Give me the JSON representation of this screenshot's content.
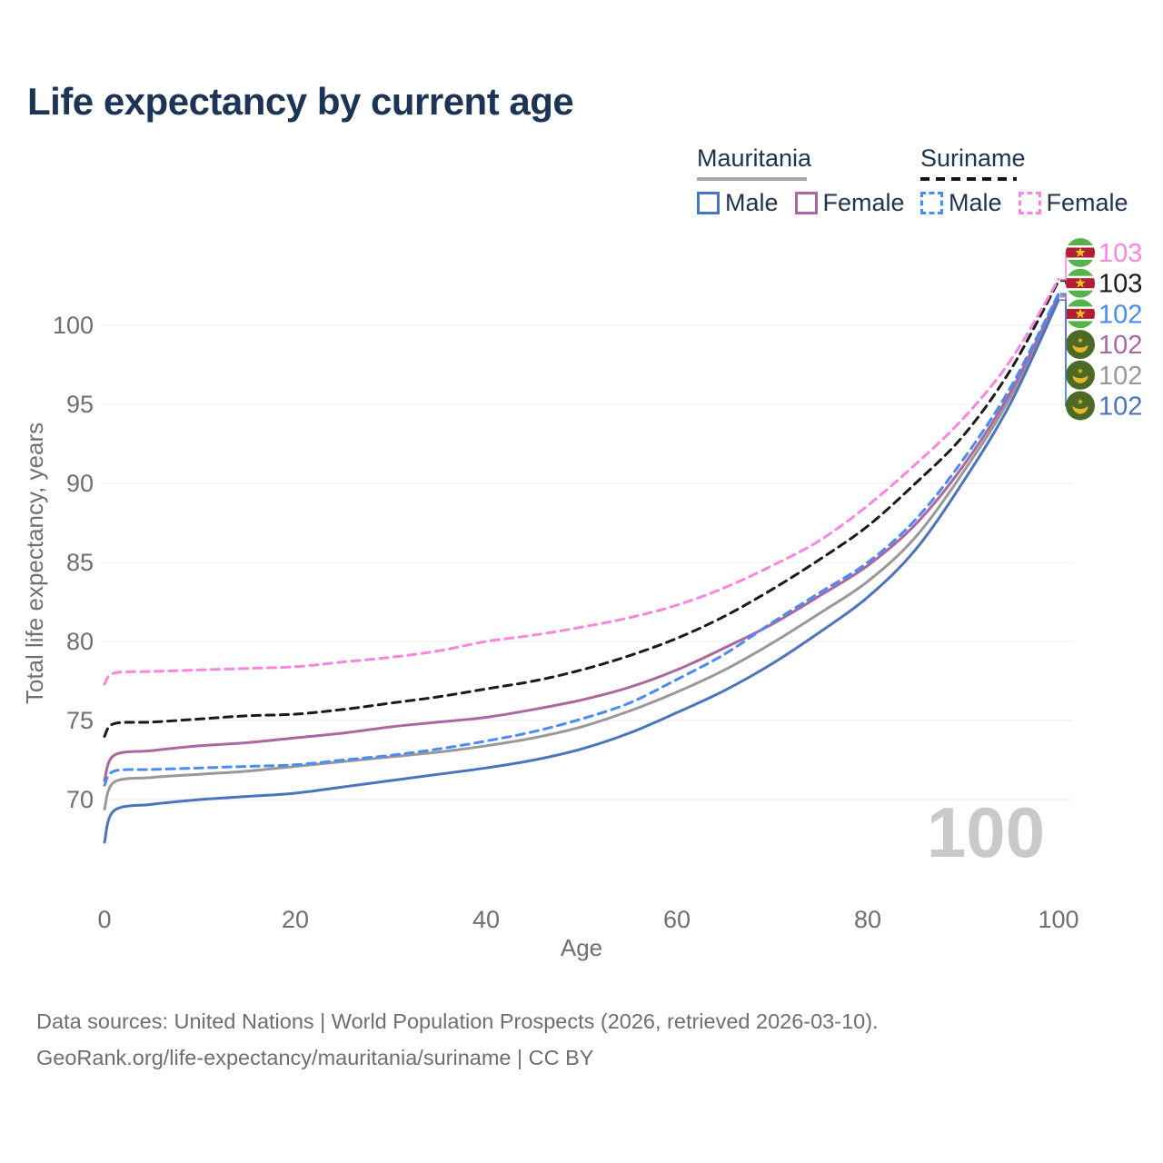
{
  "title": "Life expectancy by current age",
  "watermark": "100",
  "legend": {
    "mauritania": {
      "name": "Mauritania",
      "male": "Male",
      "female": "Female"
    },
    "suriname": {
      "name": "Suriname",
      "male": "Male",
      "female": "Female"
    }
  },
  "footer": {
    "line1": "Data sources: United Nations | World Population Prospects (2026, retrieved 2026-03-10).",
    "line2": "GeoRank.org/life-expectancy/mauritania/suriname | CC BY"
  },
  "chart_data": {
    "type": "line",
    "title": "Life expectancy by current age",
    "xlabel": "Age",
    "ylabel": "Total life expectancy, years",
    "x_ticks": [
      0,
      20,
      40,
      60,
      80,
      100
    ],
    "y_ticks": [
      70,
      75,
      80,
      85,
      90,
      95,
      100
    ],
    "xlim": [
      0,
      100
    ],
    "ylim": [
      66,
      104
    ],
    "grid": "horizontal",
    "legend_position": "top-right",
    "ages": [
      0,
      1,
      5,
      10,
      15,
      20,
      25,
      30,
      35,
      40,
      45,
      50,
      55,
      60,
      65,
      70,
      75,
      80,
      85,
      90,
      95,
      100
    ],
    "series": [
      {
        "id": "mauritania-male",
        "name": "Mauritania Male",
        "country": "Mauritania",
        "sex": "Male",
        "color": "#4a74bc",
        "line_style": "solid",
        "flag": "mauritania",
        "end_label": "102",
        "values": [
          67.3,
          69.3,
          69.7,
          70.0,
          70.2,
          70.4,
          70.8,
          71.2,
          71.6,
          72.0,
          72.5,
          73.2,
          74.2,
          75.5,
          76.9,
          78.6,
          80.6,
          82.8,
          85.8,
          90.1,
          95.1,
          101.6
        ]
      },
      {
        "id": "mauritania-female",
        "name": "Mauritania Female",
        "country": "Mauritania",
        "sex": "Female",
        "color": "#ab67a2",
        "line_style": "solid",
        "flag": "mauritania",
        "end_label": "102",
        "values": [
          71.2,
          72.8,
          73.1,
          73.4,
          73.6,
          73.9,
          74.2,
          74.6,
          74.9,
          75.2,
          75.7,
          76.3,
          77.1,
          78.2,
          79.6,
          81.1,
          82.9,
          84.8,
          87.4,
          91.1,
          95.8,
          101.9
        ]
      },
      {
        "id": "mauritania-both",
        "name": "Mauritania",
        "country": "Mauritania",
        "sex": "Both",
        "color": "#999999",
        "line_style": "solid",
        "flag": "mauritania",
        "end_label": "102",
        "values": [
          69.4,
          71.1,
          71.4,
          71.6,
          71.8,
          72.1,
          72.4,
          72.7,
          73.0,
          73.4,
          73.9,
          74.6,
          75.6,
          76.8,
          78.2,
          79.9,
          81.8,
          83.8,
          86.6,
          90.7,
          95.5,
          101.8
        ]
      },
      {
        "id": "suriname-male",
        "name": "Suriname Male",
        "country": "Suriname",
        "sex": "Male",
        "color": "#4a8bf5",
        "line_style": "dashed",
        "flag": "suriname",
        "end_label": "102",
        "values": [
          70.9,
          71.8,
          71.9,
          72.0,
          72.1,
          72.2,
          72.5,
          72.8,
          73.2,
          73.7,
          74.3,
          75.1,
          76.1,
          77.6,
          79.2,
          81.2,
          83.1,
          85.0,
          87.7,
          91.5,
          96.1,
          102.0
        ]
      },
      {
        "id": "suriname-female",
        "name": "Suriname Female",
        "country": "Suriname",
        "sex": "Female",
        "color": "#fb85e0",
        "line_style": "dashed",
        "flag": "suriname",
        "end_label": "103",
        "values": [
          77.3,
          78.0,
          78.1,
          78.2,
          78.3,
          78.4,
          78.7,
          79.0,
          79.4,
          80.0,
          80.4,
          80.9,
          81.5,
          82.3,
          83.4,
          84.8,
          86.4,
          88.6,
          91.2,
          94.1,
          97.8,
          102.9
        ]
      },
      {
        "id": "suriname-both",
        "name": "Suriname",
        "country": "Suriname",
        "sex": "Both",
        "color": "#1a1a1a",
        "line_style": "dashed",
        "flag": "suriname",
        "end_label": "103",
        "values": [
          74.0,
          74.8,
          74.9,
          75.1,
          75.3,
          75.4,
          75.7,
          76.1,
          76.5,
          77.0,
          77.5,
          78.2,
          79.1,
          80.2,
          81.6,
          83.3,
          85.2,
          87.3,
          90.0,
          93.0,
          97.2,
          102.8
        ]
      }
    ],
    "flag_colors": {
      "mauritania": {
        "field": "#4c6a26",
        "emblem": "#e3ba25"
      },
      "suriname": {
        "green": "#55b34a",
        "white": "#ffffff",
        "red": "#b01f35",
        "star": "#f0c41f"
      }
    },
    "axis_text_color": "#6f6f6f",
    "gridline_color": "#ececec",
    "watermark_color": "#c9c9c9"
  }
}
